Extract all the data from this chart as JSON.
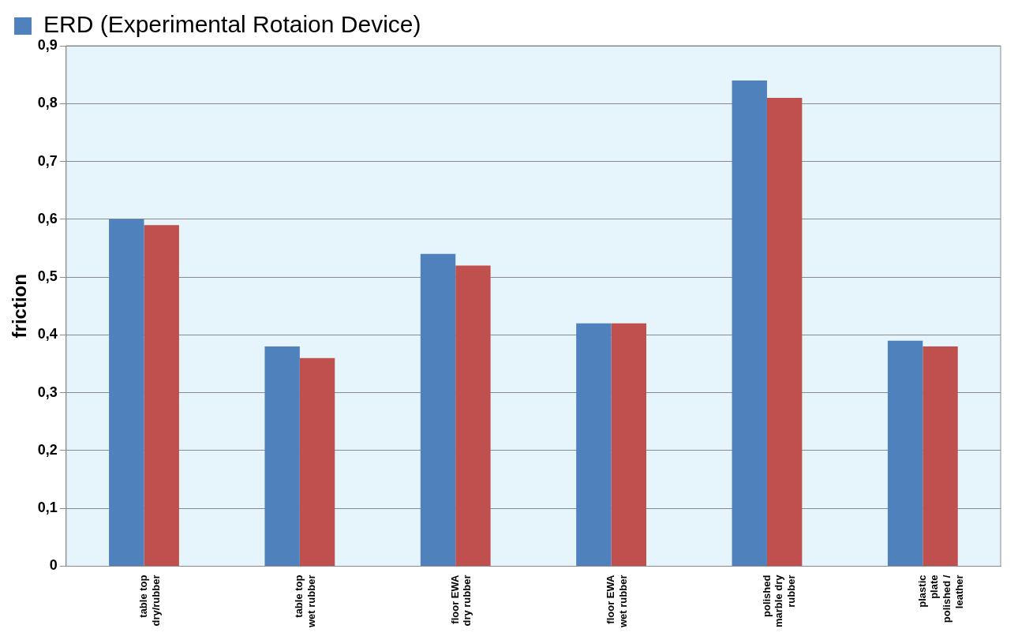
{
  "chart_data": {
    "type": "bar",
    "ylabel": "friction",
    "categories": [
      "table top dry/rubber",
      "table top wet rubber",
      "floor EWA dry rubber",
      "floor EWA wet rubber",
      "polished marble dry rubber",
      "plastic plate polished / leather"
    ],
    "series": [
      {
        "name": "ERD (Experimental Rotaion Device)",
        "color": "#4f81bd",
        "values": [
          0.6,
          0.38,
          0.54,
          0.42,
          0.84,
          0.39
        ]
      },
      {
        "color": "#c0504d",
        "values": [
          0.59,
          0.36,
          0.52,
          0.42,
          0.81,
          0.38
        ]
      }
    ],
    "ylim": [
      0,
      0.9
    ],
    "yticks": [
      0,
      {
        "value": 0.1,
        "label": "0,1"
      },
      {
        "value": 0.2,
        "label": "0,2"
      },
      {
        "value": 0.3,
        "label": "0,3"
      },
      {
        "value": 0.4,
        "label": "0,4"
      },
      {
        "value": 0.5,
        "label": "0,5"
      },
      {
        "value": 0.6,
        "label": "0,6"
      },
      {
        "value": 0.7,
        "label": "0,7"
      },
      {
        "value": 0.8,
        "label": "0,8"
      },
      {
        "value": 0.9,
        "label": "0,9"
      }
    ],
    "grid": "y",
    "legend": "top left"
  }
}
